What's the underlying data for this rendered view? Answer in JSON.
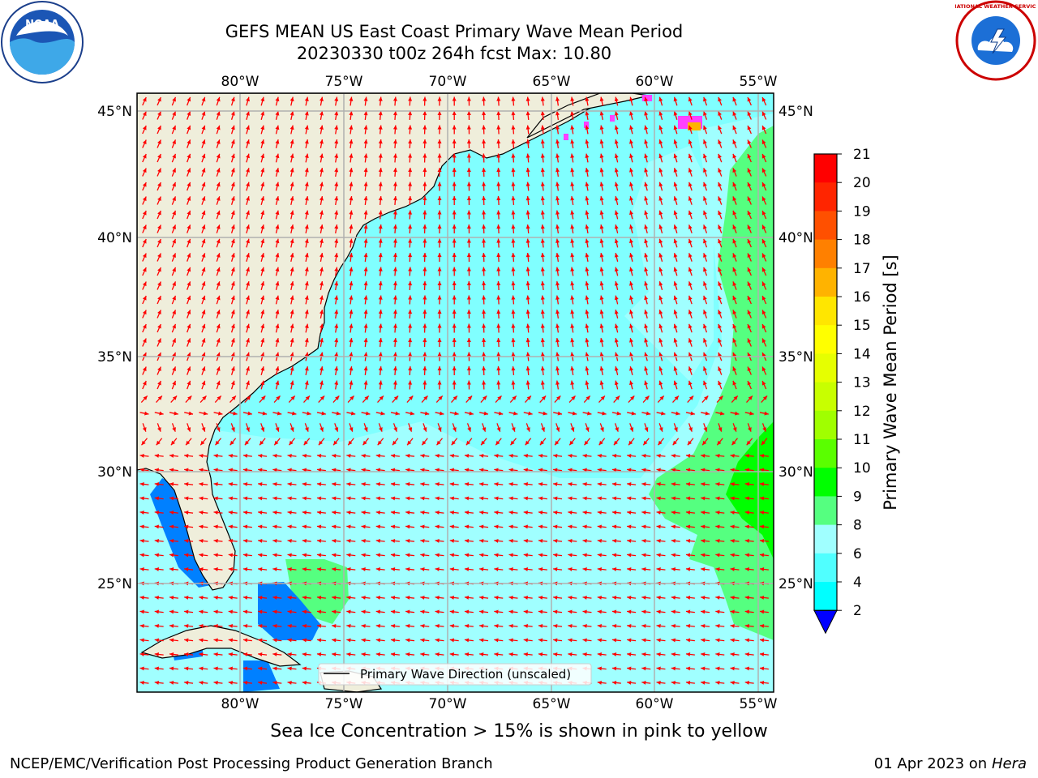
{
  "title": {
    "line1": "GEFS MEAN US East Coast Primary Wave Mean Period",
    "line2": "20230330 t00z 264h fcst   Max: 10.80"
  },
  "map": {
    "lon_ticks": [
      "80°W",
      "75°W",
      "70°W",
      "65°W",
      "60°W",
      "55°W"
    ],
    "lat_ticks": [
      "45°N",
      "40°N",
      "35°N",
      "30°N",
      "25°N"
    ],
    "legend_label": "Primary Wave Direction (unscaled)",
    "ocean_color": "#80ffff",
    "land_color": "#efeedb",
    "arrow_color": "#ff0000",
    "grid": "on",
    "legend_placement": "bottom-center"
  },
  "colorbar": {
    "title": "Primary Wave Mean Period [s]",
    "labels": [
      "21",
      "20",
      "19",
      "18",
      "17",
      "16",
      "15",
      "14",
      "13",
      "12",
      "11",
      "10",
      "9",
      "8",
      "6",
      "4",
      "2"
    ],
    "colors": [
      "#ff0000",
      "#ff2500",
      "#ff5000",
      "#ff8000",
      "#ffb300",
      "#ffe600",
      "#ffff00",
      "#e6ff00",
      "#c8ff00",
      "#a0ff00",
      "#5aff00",
      "#00ff00",
      "#55ff80",
      "#a0ffff",
      "#50ffff",
      "#00ffff",
      "#0080ff"
    ],
    "under_color": "#0000ff"
  },
  "note": "Sea Ice Concentration > 15% is shown in pink to yellow",
  "footer": {
    "left": "NCEP/EMC/Verification Post Processing Product Generation Branch",
    "date": "01 Apr 2023 on ",
    "machine": "Hera"
  },
  "logos": {
    "left": "noaa-logo",
    "left_text": "NOAA",
    "right": "nws-logo",
    "right_text": "NATIONAL WEATHER SERVICE"
  }
}
